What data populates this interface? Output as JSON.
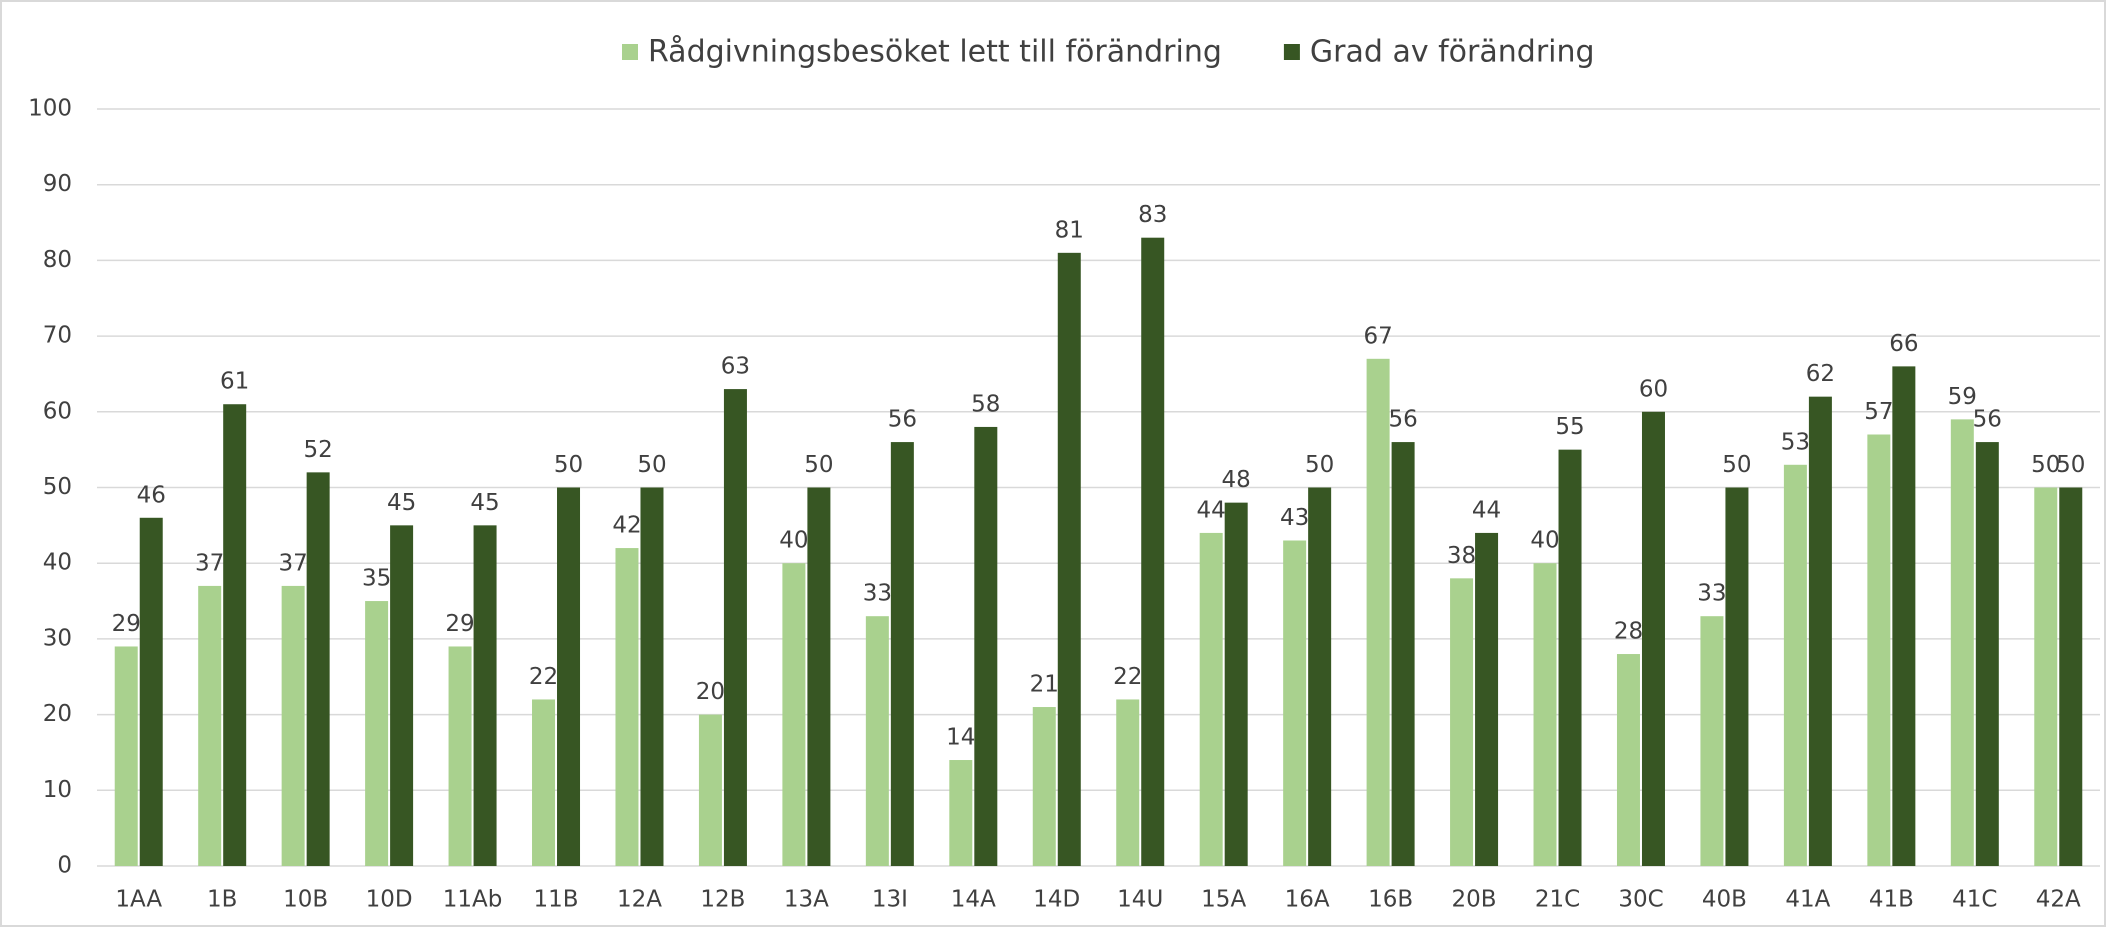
{
  "chart_data": {
    "type": "bar",
    "categories": [
      "1AA",
      "1B",
      "10B",
      "10D",
      "11Ab",
      "11B",
      "12A",
      "12B",
      "13A",
      "13I",
      "14A",
      "14D",
      "14U",
      "15A",
      "16A",
      "16B",
      "20B",
      "21C",
      "30C",
      "40B",
      "41A",
      "41B",
      "41C",
      "42A"
    ],
    "series": [
      {
        "name": "Rådgivningsbesöket lett till förändring",
        "color": "#a9d18e",
        "values": [
          29,
          37,
          37,
          35,
          29,
          22,
          42,
          20,
          40,
          33,
          14,
          21,
          22,
          44,
          43,
          67,
          38,
          40,
          28,
          33,
          53,
          57,
          59,
          50
        ]
      },
      {
        "name": "Grad av förändring",
        "color": "#375623",
        "values": [
          46,
          61,
          52,
          45,
          45,
          50,
          50,
          63,
          50,
          56,
          58,
          81,
          83,
          48,
          50,
          56,
          44,
          55,
          60,
          50,
          62,
          66,
          56,
          50
        ]
      }
    ],
    "ylim": [
      0,
      100
    ],
    "yticks": [
      0,
      10,
      20,
      30,
      40,
      50,
      60,
      70,
      80,
      90,
      100
    ],
    "grid": true,
    "legend": "top"
  }
}
